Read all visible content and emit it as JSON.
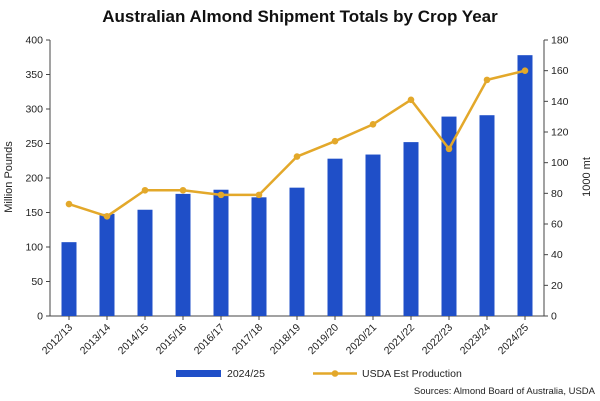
{
  "chart_data": {
    "type": "bar",
    "title": "Australian Almond Shipment Totals by Crop Year",
    "categories": [
      "2012/13",
      "2013/14",
      "2014/15",
      "2015/16",
      "2016/17",
      "2017/18",
      "2018/19",
      "2019/20",
      "2020/21",
      "2021/22",
      "2022/23",
      "2023/24",
      "2024/25"
    ],
    "ylabel": "Million Pounds",
    "ylabel_right": "1000 mt",
    "ylim": [
      0,
      400
    ],
    "ylim_right": [
      0,
      180
    ],
    "yticks": [
      "0",
      "50",
      "100",
      "150",
      "200",
      "250",
      "300",
      "350",
      "400"
    ],
    "yticks_right": [
      "0",
      "20",
      "40",
      "60",
      "80",
      "100",
      "120",
      "140",
      "160",
      "180"
    ],
    "series": [
      {
        "name": "2024/25",
        "type": "bar",
        "axis": "left",
        "color": "#1f4fc8",
        "values": [
          107,
          148,
          154,
          177,
          183,
          172,
          186,
          228,
          234,
          252,
          289,
          291,
          378
        ]
      },
      {
        "name": "USDA Est Production",
        "type": "line",
        "axis": "right",
        "color": "#e3a82a",
        "values": [
          73,
          65,
          82,
          82,
          79,
          79,
          104,
          114,
          125,
          141,
          109,
          154,
          160
        ]
      }
    ],
    "legend_position": "bottom",
    "source": "Sources: Almond Board of Australia, USDA"
  }
}
